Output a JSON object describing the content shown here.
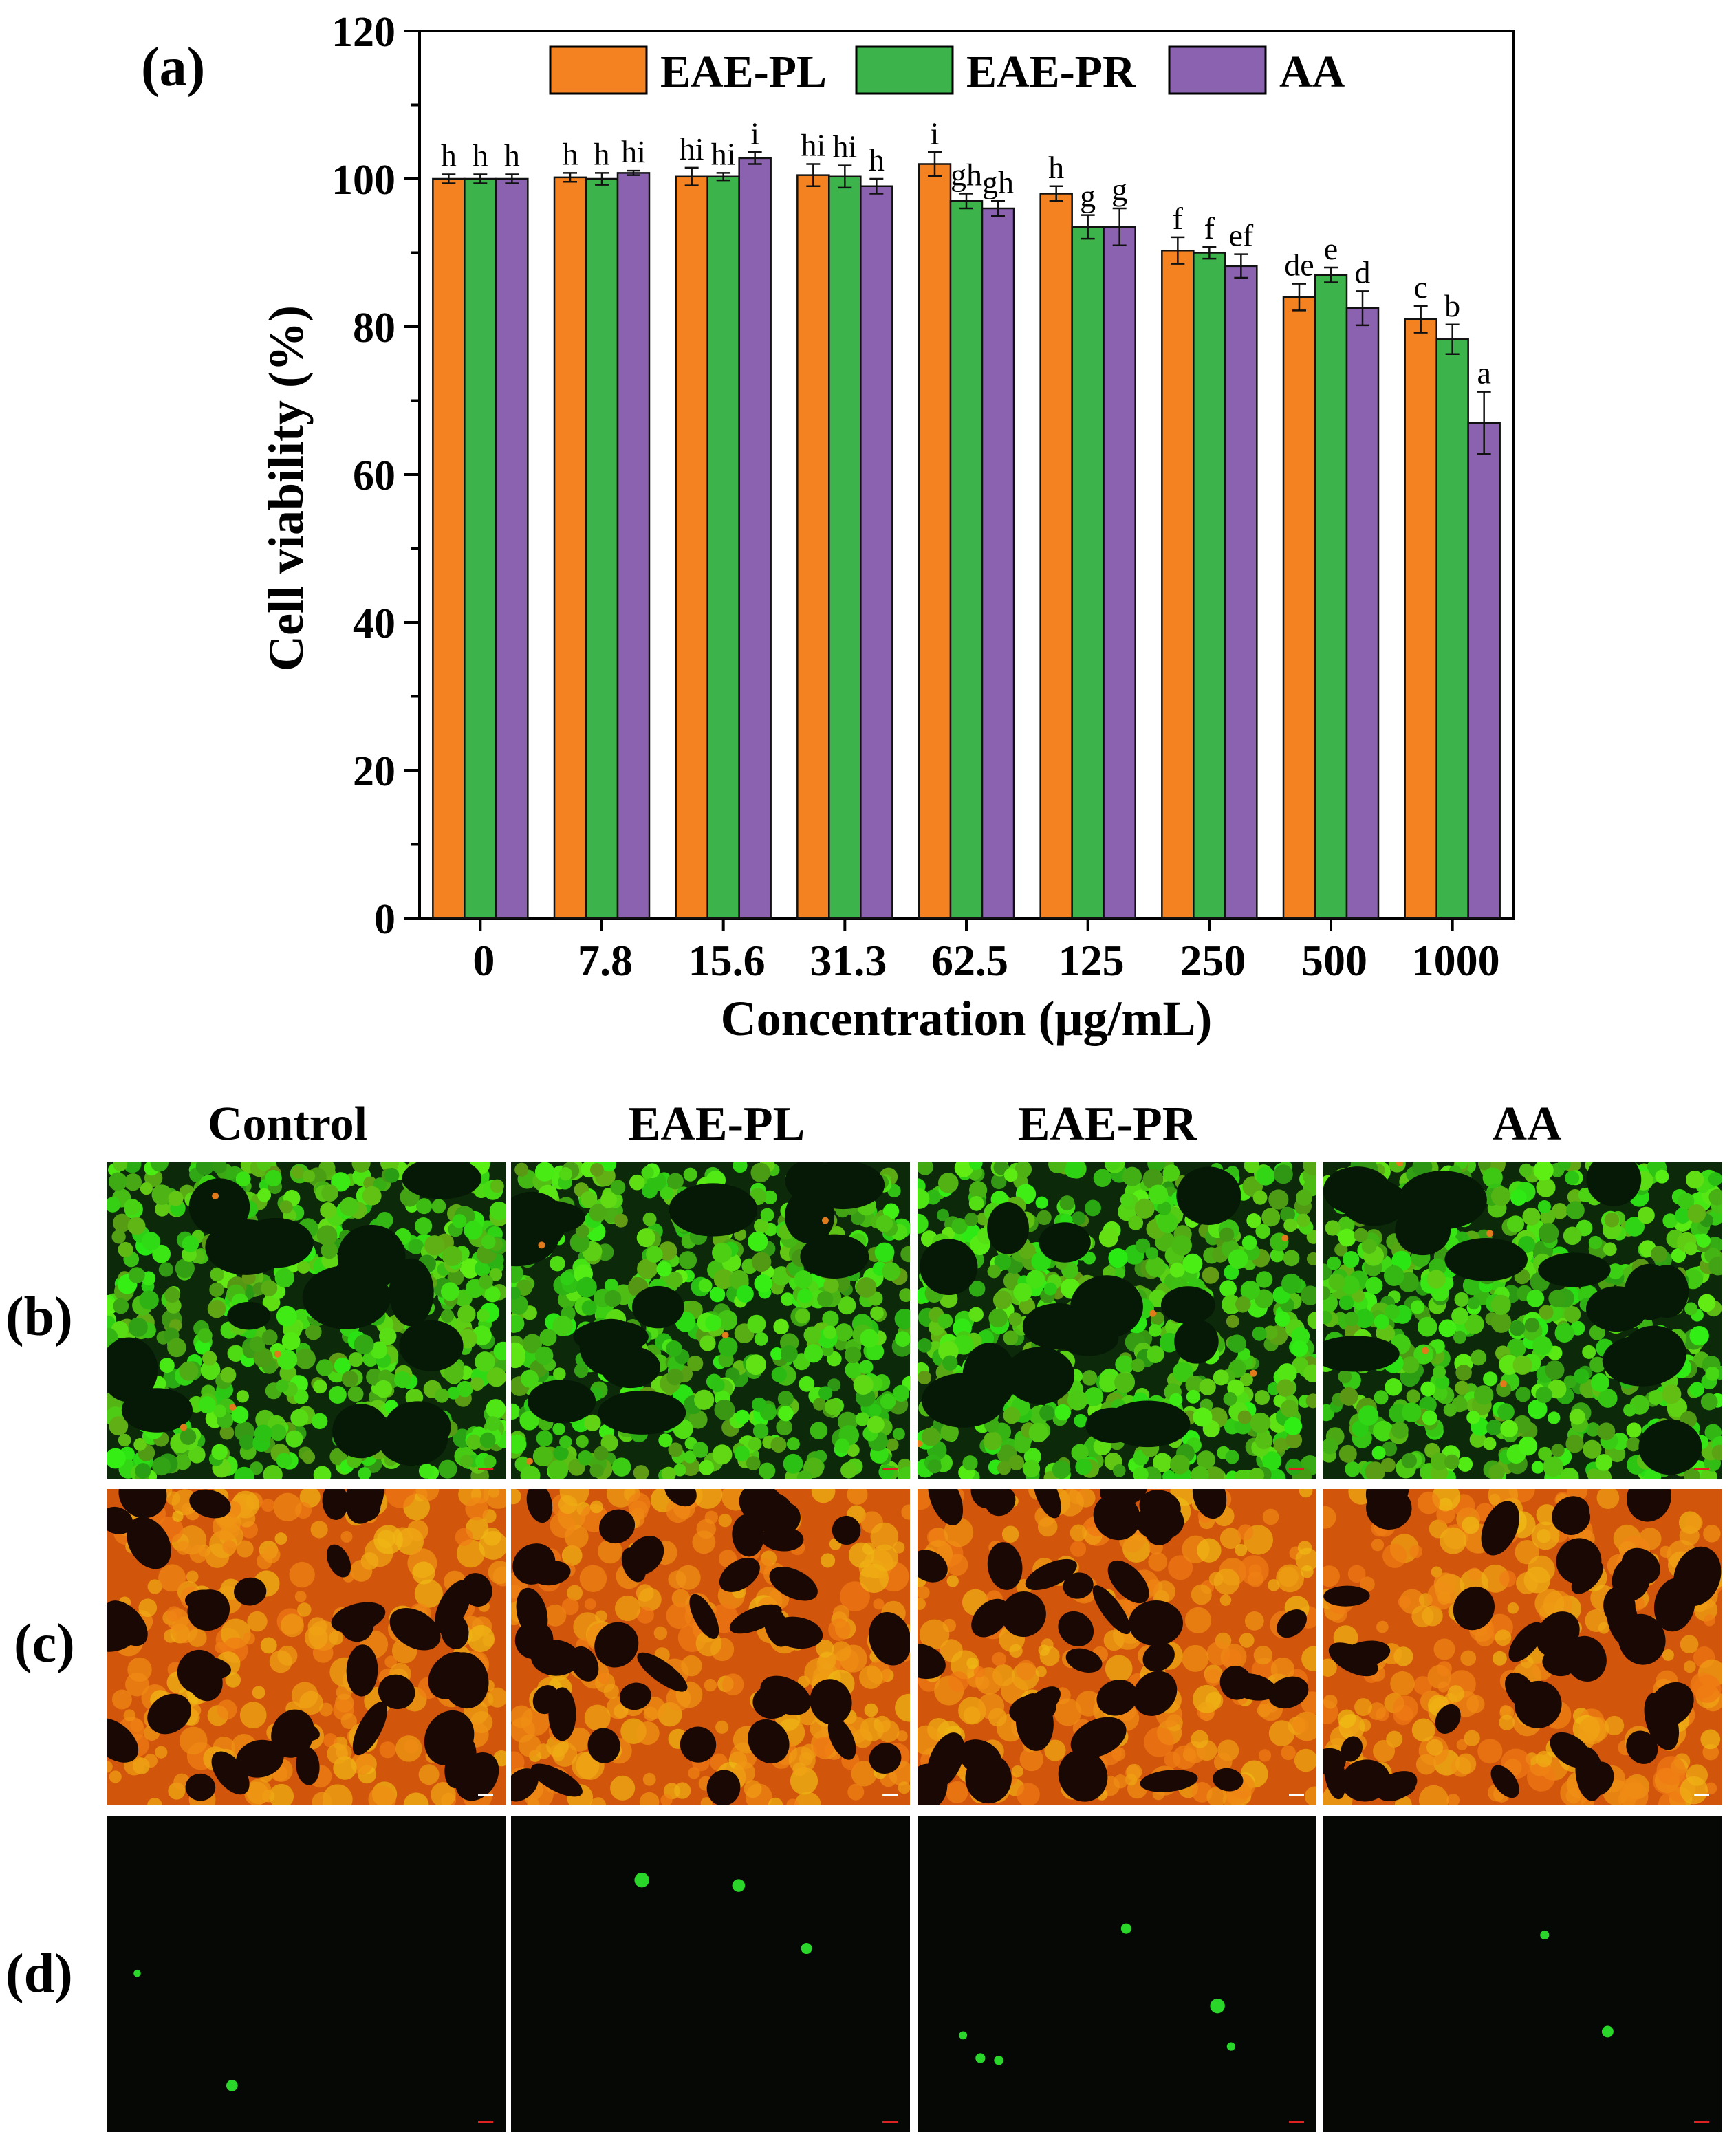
{
  "panels": {
    "a": "(a)",
    "b": "(b)",
    "c": "(c)",
    "d": "(d)"
  },
  "columns": [
    "Control",
    "EAE-PL",
    "EAE-PR",
    "AA"
  ],
  "colors": {
    "EAE-PL": "#f58220",
    "EAE-PR": "#3cb44b",
    "AA": "#8b62b0"
  },
  "chart_data": {
    "type": "bar",
    "title": "",
    "xlabel": "Concentration (μg/mL)",
    "ylabel": "Cell viability (%)",
    "ylim": [
      0,
      120
    ],
    "yticks": [
      0,
      20,
      40,
      60,
      80,
      100,
      120
    ],
    "categories": [
      "0",
      "7.8",
      "15.6",
      "31.3",
      "62.5",
      "125",
      "250",
      "500",
      "1000"
    ],
    "legend_position": "top",
    "series": [
      {
        "name": "EAE-PL",
        "values": [
          100,
          100.2,
          100.3,
          100.5,
          102,
          98,
          90.3,
          84,
          81
        ],
        "errors": [
          0.6,
          0.6,
          1.2,
          1.5,
          1.6,
          1.0,
          1.8,
          1.8,
          1.8
        ],
        "letters": [
          "h",
          "h",
          "hi",
          "hi",
          "i",
          "h",
          "f",
          "de",
          "c"
        ]
      },
      {
        "name": "EAE-PR",
        "values": [
          100,
          100,
          100.3,
          100.3,
          97,
          93.5,
          90,
          87,
          78.3
        ],
        "errors": [
          0.6,
          0.8,
          0.5,
          1.5,
          1.0,
          1.6,
          0.8,
          1.0,
          2.0
        ],
        "letters": [
          "h",
          "h",
          "hi",
          "hi",
          "gh",
          "g",
          "f",
          "e",
          "b"
        ]
      },
      {
        "name": "AA",
        "values": [
          100,
          100.8,
          102.8,
          99,
          96,
          93.5,
          88.2,
          82.5,
          67
        ],
        "errors": [
          0.6,
          0.3,
          0.8,
          1.0,
          1.0,
          2.5,
          1.6,
          2.3,
          4.2
        ],
        "letters": [
          "h",
          "hi",
          "i",
          "h",
          "gh",
          "g",
          "ef",
          "d",
          "a"
        ]
      }
    ]
  }
}
